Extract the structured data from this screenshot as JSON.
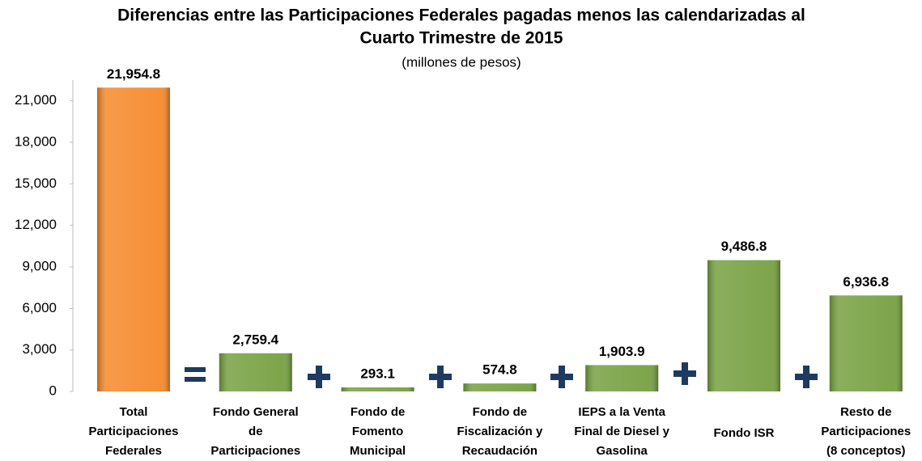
{
  "chart_data": {
    "type": "bar",
    "title": [
      "Diferencias entre las Participaciones Federales pagadas menos las calendarizadas al",
      "Cuarto Trimestre de 2015"
    ],
    "subtitle": "(millones de pesos)",
    "categories": [
      [
        "Total",
        "Participaciones",
        "Federales"
      ],
      [
        "Fondo General",
        "de",
        "Participaciones"
      ],
      [
        "Fondo de",
        "Fomento",
        "Municipal"
      ],
      [
        "Fondo de",
        "Fiscalización y",
        "Recaudación"
      ],
      [
        "IEPS a la Venta",
        "Final de Diesel y",
        "Gasolina"
      ],
      [
        "Fondo ISR"
      ],
      [
        "Resto de",
        "Participaciones",
        "(8 conceptos)"
      ]
    ],
    "values": [
      21954.8,
      2759.4,
      293.1,
      574.8,
      1903.9,
      9486.8,
      6936.8
    ],
    "value_labels": [
      "21,954.8",
      "2,759.4",
      "293.1",
      "574.8",
      "1,903.9",
      "9,486.8",
      "6,936.8"
    ],
    "colors": [
      "#f5892c",
      "#76a041",
      "#76a041",
      "#76a041",
      "#76a041",
      "#76a041",
      "#76a041"
    ],
    "ylim": [
      0,
      22500
    ],
    "yticks": [
      0,
      {
        "value": 3000,
        "label": "3,000"
      },
      {
        "value": 6000,
        "label": "6,000"
      },
      {
        "value": 9000,
        "label": "9,000"
      },
      {
        "value": 12000,
        "label": "12,000"
      },
      {
        "value": 15000,
        "label": "15,000"
      },
      {
        "value": 18000,
        "label": "18,000"
      },
      {
        "value": 21000,
        "label": "21,000"
      }
    ],
    "grid": false
  }
}
